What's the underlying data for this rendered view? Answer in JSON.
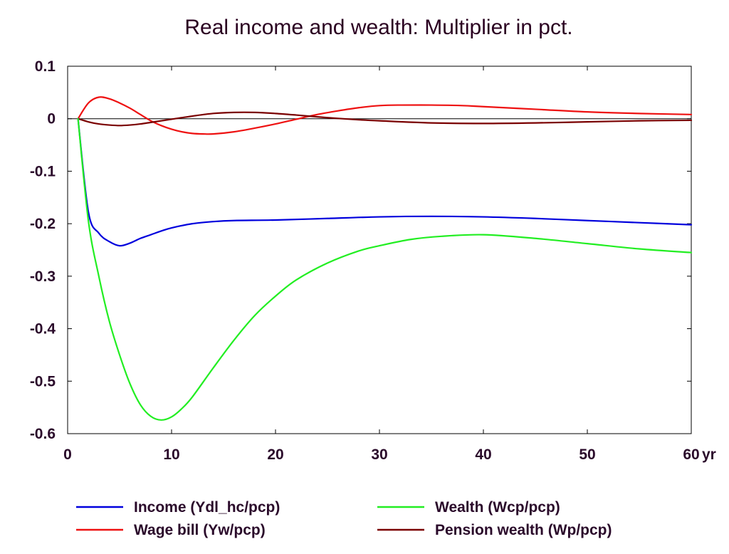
{
  "chart_data": {
    "type": "line",
    "title": "Real income and wealth: Multiplier in pct.",
    "xlabel": "",
    "ylabel": "",
    "x_unit_label": "yr",
    "xlim": [
      0,
      60
    ],
    "ylim": [
      -0.6,
      0.1
    ],
    "x_ticks": [
      0,
      10,
      20,
      30,
      40,
      50,
      60
    ],
    "x_tick_labels": [
      "0",
      "10",
      "20",
      "30",
      "40",
      "50",
      "60"
    ],
    "y_ticks": [
      0.1,
      0,
      -0.1,
      -0.2,
      -0.3,
      -0.4,
      -0.5,
      -0.6
    ],
    "y_tick_labels": [
      "0.1",
      "0",
      "-0.1",
      "-0.2",
      "-0.3",
      "-0.4",
      "-0.5",
      "-0.6"
    ],
    "grid": false,
    "zero_line": true,
    "legend_position": "bottom",
    "series": [
      {
        "name": "Income (Ydl_hc/pcp)",
        "color": "#0000dd",
        "x": [
          1,
          2,
          3,
          4,
          5,
          6,
          7,
          8,
          9,
          10,
          12,
          14,
          16,
          20,
          25,
          30,
          35,
          40,
          45,
          50,
          55,
          60
        ],
        "values": [
          0,
          -0.178,
          -0.218,
          -0.234,
          -0.242,
          -0.237,
          -0.228,
          -0.221,
          -0.214,
          -0.208,
          -0.2,
          -0.196,
          -0.194,
          -0.193,
          -0.19,
          -0.187,
          -0.186,
          -0.187,
          -0.19,
          -0.194,
          -0.198,
          -0.202
        ]
      },
      {
        "name": "Wage bill (Yw/pcp)",
        "color": "#ee1111",
        "x": [
          1,
          2,
          3,
          4,
          5,
          6,
          7,
          8,
          9,
          10,
          11,
          12,
          13,
          14,
          16,
          18,
          20,
          22,
          24,
          26,
          28,
          30,
          32,
          35,
          38,
          40,
          45,
          50,
          55,
          60
        ],
        "values": [
          0,
          0.03,
          0.041,
          0.038,
          0.03,
          0.02,
          0.008,
          -0.004,
          -0.013,
          -0.02,
          -0.025,
          -0.028,
          -0.029,
          -0.029,
          -0.025,
          -0.018,
          -0.01,
          -0.001,
          0.008,
          0.015,
          0.021,
          0.025,
          0.026,
          0.026,
          0.025,
          0.023,
          0.018,
          0.013,
          0.01,
          0.008
        ]
      },
      {
        "name": "Wealth (Wcp/pcp)",
        "color": "#22ee22",
        "x": [
          1,
          2,
          3,
          4,
          5,
          6,
          7,
          8,
          9,
          10,
          11,
          12,
          14,
          16,
          18,
          20,
          22,
          25,
          28,
          30,
          33,
          36,
          40,
          45,
          50,
          55,
          60
        ],
        "values": [
          0,
          -0.195,
          -0.3,
          -0.385,
          -0.45,
          -0.505,
          -0.545,
          -0.567,
          -0.574,
          -0.568,
          -0.552,
          -0.53,
          -0.475,
          -0.422,
          -0.375,
          -0.338,
          -0.307,
          -0.275,
          -0.252,
          -0.242,
          -0.23,
          -0.224,
          -0.221,
          -0.228,
          -0.238,
          -0.248,
          -0.255
        ]
      },
      {
        "name": "Pension wealth (Wp/pcp)",
        "color": "#7a0000",
        "x": [
          1,
          2,
          3,
          4,
          5,
          6,
          7,
          8,
          9,
          10,
          12,
          14,
          16,
          18,
          20,
          22,
          25,
          28,
          30,
          35,
          40,
          45,
          50,
          55,
          60
        ],
        "values": [
          0,
          -0.006,
          -0.01,
          -0.012,
          -0.013,
          -0.012,
          -0.01,
          -0.007,
          -0.004,
          -0.001,
          0.005,
          0.01,
          0.012,
          0.012,
          0.01,
          0.007,
          0.002,
          -0.002,
          -0.004,
          -0.008,
          -0.009,
          -0.008,
          -0.006,
          -0.004,
          -0.003
        ]
      }
    ]
  }
}
